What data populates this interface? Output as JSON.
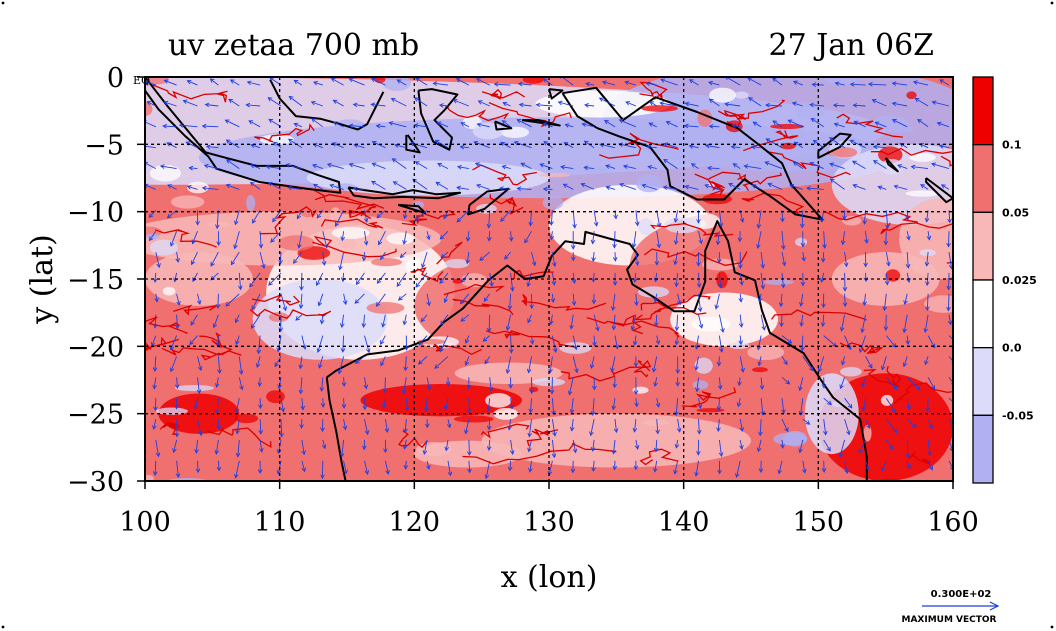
{
  "chart_data": {
    "type": "heatmap",
    "title_left": "uv zetaa 700 mb",
    "title_right": "27 Jan 06Z",
    "xlabel": "x (lon)",
    "ylabel": "y (lat)",
    "xlim": [
      100,
      160
    ],
    "ylim": [
      -30,
      0
    ],
    "x_ticks": [
      100,
      110,
      120,
      130,
      140,
      150,
      160
    ],
    "x_tick_labels": [
      "100",
      "110",
      "120",
      "130",
      "140",
      "150",
      "160"
    ],
    "y_ticks": [
      0,
      -5,
      -10,
      -15,
      -20,
      -25,
      -30
    ],
    "y_tick_labels": [
      "0",
      "−5",
      "−10",
      "−15",
      "−20",
      "−25",
      "−30"
    ],
    "eq_label": "EQ",
    "grid": true,
    "colorbar": {
      "levels": [
        {
          "label": "",
          "color": "#ee0000"
        },
        {
          "label": "0.1",
          "color": "#f07070"
        },
        {
          "label": "0.05",
          "color": "#f8b8b8"
        },
        {
          "label": "0.025",
          "color": "#ffffff"
        },
        {
          "label": "0.0",
          "color": "#dcdcfa"
        },
        {
          "label": "-0.05",
          "color": "#b0b0f2"
        }
      ]
    },
    "vector_legend": {
      "value": "0.300E+02",
      "caption": "MAXIMUM VECTOR",
      "color": "#1f3fe0"
    },
    "colors": {
      "coast": "#000000",
      "contour": "#dd0000",
      "vector": "#1f3fe0",
      "grid": "#000000"
    }
  }
}
